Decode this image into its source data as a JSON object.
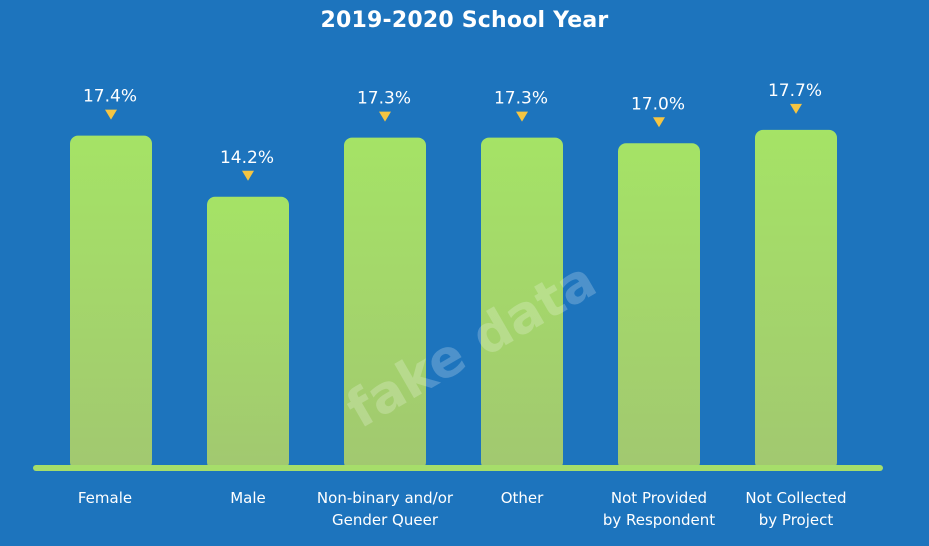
{
  "chart_data": {
    "type": "bar",
    "title": "2019-2020 School Year",
    "categories": [
      [
        "Female"
      ],
      [
        "Male"
      ],
      [
        "Non-binary and/or",
        "Gender Queer"
      ],
      [
        "Other"
      ],
      [
        "Not Provided",
        "by Respondent"
      ],
      [
        "Not Collected",
        "by Project"
      ]
    ],
    "values": [
      17.4,
      14.2,
      17.3,
      17.3,
      17.0,
      17.7
    ],
    "value_labels": [
      "17.4%",
      "14.2%",
      "17.3%",
      "17.3%",
      "17.0%",
      "17.7%"
    ],
    "xlabel": "",
    "ylabel": "",
    "grid": false,
    "colors": {
      "background": "#1d74bd",
      "bar_top": "#a5e366",
      "bar_bottom": "#a2c870",
      "baseline": "#a6de6a",
      "marker": "#f5c542"
    }
  },
  "watermark": "fake data"
}
